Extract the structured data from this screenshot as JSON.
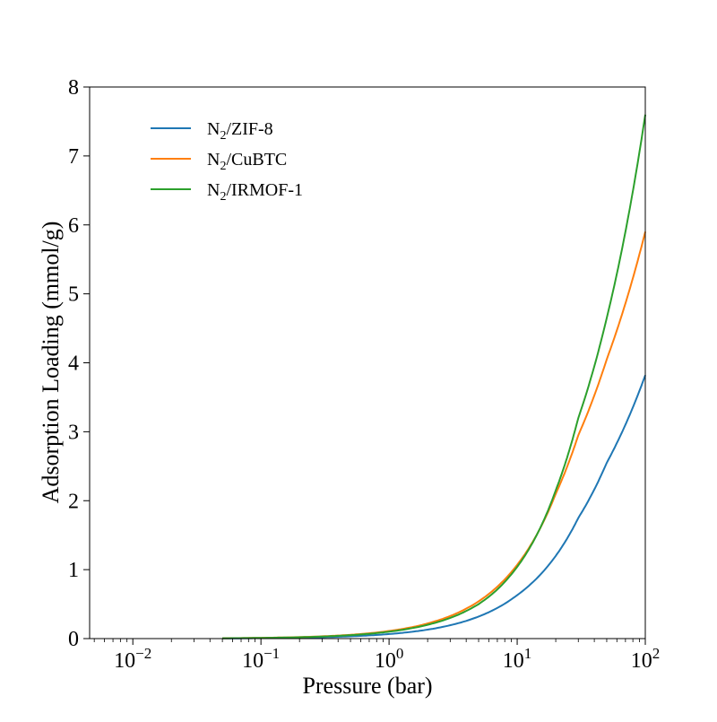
{
  "chart_data": {
    "type": "line",
    "title": "",
    "xlabel": "Pressure (bar)",
    "ylabel": "Adsorption Loading (mmol/g)",
    "xscale": "log",
    "xlim": [
      0.0046,
      100
    ],
    "ylim": [
      0,
      8
    ],
    "xticks": [
      0.01,
      0.1,
      1,
      10,
      100
    ],
    "xtick_labels": [
      {
        "base": "10",
        "exp": "−2"
      },
      {
        "base": "10",
        "exp": "−1"
      },
      {
        "base": "10",
        "exp": "0"
      },
      {
        "base": "10",
        "exp": "1"
      },
      {
        "base": "10",
        "exp": "2"
      }
    ],
    "yticks": [
      0,
      1,
      2,
      3,
      4,
      5,
      6,
      7,
      8
    ],
    "ytick_labels": [
      "0",
      "1",
      "2",
      "3",
      "4",
      "5",
      "6",
      "7",
      "8"
    ],
    "grid": false,
    "legend_placement": "top-left",
    "x": [
      0.05,
      0.1,
      0.2,
      0.5,
      1,
      2,
      5,
      10,
      20,
      30,
      50,
      100
    ],
    "series": [
      {
        "name": "N2/ZIF-8",
        "label_main": "N",
        "label_sub": "2",
        "label_rest": "/ZIF-8",
        "color": "#1f77b4",
        "values": [
          0.003,
          0.007,
          0.013,
          0.033,
          0.066,
          0.13,
          0.32,
          0.63,
          1.2,
          1.75,
          2.55,
          3.82
        ]
      },
      {
        "name": "N2/CuBTC",
        "label_main": "N",
        "label_sub": "2",
        "label_rest": "/CuBTC",
        "color": "#ff7f0e",
        "values": [
          0.005,
          0.011,
          0.022,
          0.055,
          0.11,
          0.22,
          0.54,
          1.07,
          2.1,
          2.95,
          4.05,
          5.9
        ]
      },
      {
        "name": "N2/IRMOF-1",
        "label_main": "N",
        "label_sub": "2",
        "label_rest": "/IRMOF-1",
        "color": "#2ca02c",
        "values": [
          0.005,
          0.01,
          0.02,
          0.05,
          0.1,
          0.2,
          0.5,
          1.04,
          2.15,
          3.2,
          4.65,
          7.6
        ]
      }
    ]
  }
}
